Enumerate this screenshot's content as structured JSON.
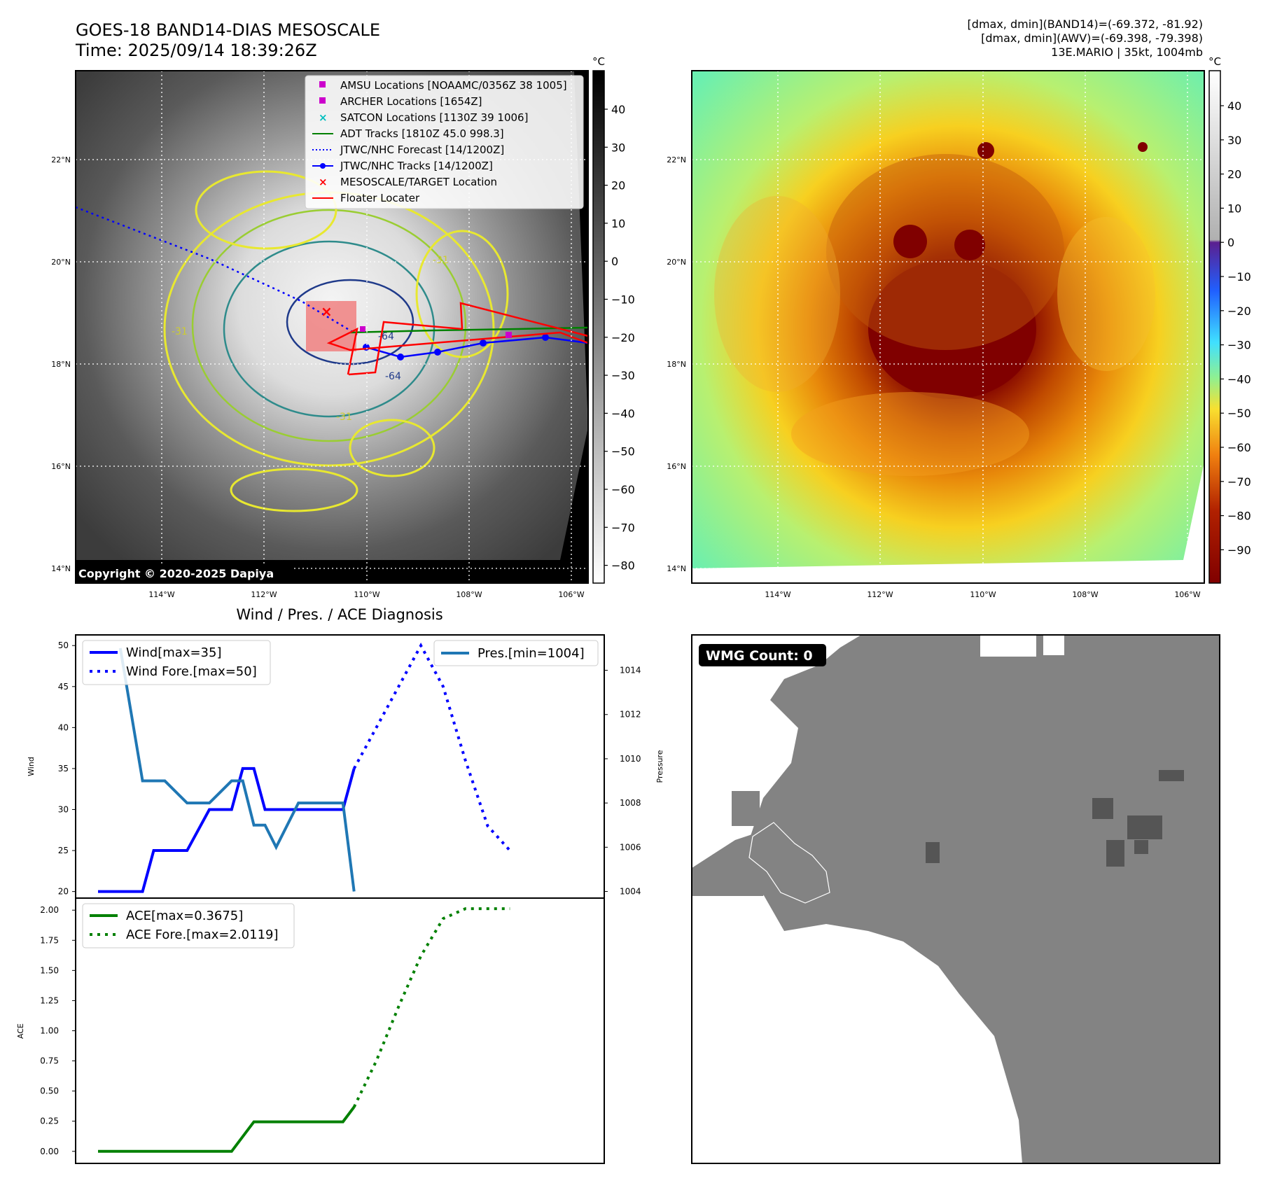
{
  "header": {
    "title_line1": "GOES-18 BAND14-DIAS MESOSCALE",
    "title_line2": "Time: 2025/09/14 18:39:26Z",
    "info_line1": "[dmax, dmin](BAND14)=(-69.372, -81.92)",
    "info_line2": "[dmax, dmin](AWV)=(-69.398, -79.398)",
    "info_line3": "13E.MARIO | 35kt, 1004mb"
  },
  "maps": {
    "lon_ticks": [
      "114°W",
      "112°W",
      "110°W",
      "108°W",
      "106°W"
    ],
    "lat_ticks": [
      "22°N",
      "20°N",
      "18°N",
      "16°N",
      "14°N"
    ],
    "copyright": "Copyright © 2020-2025 Dapiya",
    "contour_labels": [
      "-31",
      "-64",
      "-31",
      "-31",
      "-64"
    ]
  },
  "colorbar_gray": {
    "unit": "°C",
    "ticks": [
      "40",
      "30",
      "20",
      "10",
      "0",
      "−10",
      "−20",
      "−30",
      "−40",
      "−50",
      "−60",
      "−70",
      "−80"
    ]
  },
  "colorbar_color": {
    "unit": "°C",
    "ticks": [
      "40",
      "30",
      "20",
      "10",
      "0",
      "−10",
      "−20",
      "−30",
      "−40",
      "−50",
      "−60",
      "−70",
      "−80",
      "−90"
    ]
  },
  "legend_map": [
    {
      "label": "AMSU Locations [NOAAMC/0356Z 38 1005]",
      "color": "#cc00cc",
      "marker": "square"
    },
    {
      "label": "ARCHER Locations [1654Z]",
      "color": "#cc00cc",
      "marker": "square"
    },
    {
      "label": "SATCON Locations [1130Z 39 1006]",
      "color": "#00bfbf",
      "marker": "x"
    },
    {
      "label": "ADT Tracks [1810Z 45.0 998.3]",
      "color": "#008000",
      "marker": "line"
    },
    {
      "label": "JTWC/NHC Forecast [14/1200Z]",
      "color": "#0000ff",
      "marker": "dotted"
    },
    {
      "label": "JTWC/NHC Tracks [14/1200Z]",
      "color": "#0000ff",
      "marker": "line-dot"
    },
    {
      "label": "MESOSCALE/TARGET Location",
      "color": "#ff0000",
      "marker": "x"
    },
    {
      "label": "Floater Locater",
      "color": "#ff0000",
      "marker": "line"
    }
  ],
  "wmg": {
    "label": "WMG Count: 0"
  },
  "chart_data": [
    {
      "type": "line",
      "title": "Wind / Pres. / ACE Diagnosis",
      "ylabel": "Wind",
      "ylabel_right": "Pressure",
      "ylim": [
        19.2,
        51.3
      ],
      "ylim_right": [
        1003.7,
        1015.6
      ],
      "yticks": [
        20,
        25,
        30,
        35,
        40,
        45,
        50
      ],
      "yticks_right": [
        1004,
        1006,
        1008,
        1010,
        1012,
        1014
      ],
      "series": [
        {
          "name": "Wind[max=35]",
          "axis": "left",
          "color": "#0000ff",
          "style": "solid",
          "x": [
            0,
            1,
            2,
            2.5,
            3,
            4,
            5,
            6,
            6.5,
            7,
            7.5,
            8,
            9,
            10,
            11,
            11.5
          ],
          "values": [
            20,
            20,
            20,
            25,
            25,
            25,
            30,
            30,
            35,
            35,
            30,
            30,
            30,
            30,
            30,
            35
          ]
        },
        {
          "name": "Wind Fore.[max=50]",
          "axis": "left",
          "color": "#0000ff",
          "style": "dotted",
          "x": [
            11.5,
            12.5,
            13.5,
            14.5,
            15.5,
            16.5,
            17.5,
            18.5
          ],
          "values": [
            35,
            40,
            45,
            50,
            45,
            36,
            28,
            25
          ]
        },
        {
          "name": "Pres.[min=1004]",
          "axis": "right",
          "color": "#1f77b4",
          "style": "solid",
          "x": [
            1,
            2,
            3,
            4,
            5,
            6,
            6.5,
            7,
            7.5,
            8,
            9,
            10,
            11,
            11.5
          ],
          "values": [
            1015,
            1009,
            1009,
            1008,
            1008,
            1009,
            1009,
            1007,
            1007,
            1006,
            1008,
            1008,
            1008,
            1004
          ]
        }
      ]
    },
    {
      "type": "line",
      "ylabel": "ACE",
      "ylim": [
        -0.1,
        2.1
      ],
      "yticks": [
        "0.00",
        "0.25",
        "0.50",
        "0.75",
        "1.00",
        "1.25",
        "1.50",
        "1.75",
        "2.00"
      ],
      "series": [
        {
          "name": "ACE[max=0.3675]",
          "color": "#008000",
          "style": "solid",
          "x": [
            0,
            1,
            2,
            3,
            4,
            5,
            6,
            7,
            8,
            9,
            10,
            11,
            11.5
          ],
          "values": [
            0,
            0,
            0,
            0,
            0,
            0,
            0,
            0.245,
            0.245,
            0.245,
            0.245,
            0.245,
            0.3675
          ]
        },
        {
          "name": "ACE Fore.[max=2.0119]",
          "color": "#008000",
          "style": "dotted",
          "x": [
            11.5,
            12.5,
            13.5,
            14.5,
            15.5,
            16.5,
            17.5,
            18.5
          ],
          "values": [
            0.3675,
            0.75,
            1.2,
            1.62,
            1.93,
            2.0119,
            2.0119,
            2.0119
          ]
        }
      ]
    }
  ]
}
